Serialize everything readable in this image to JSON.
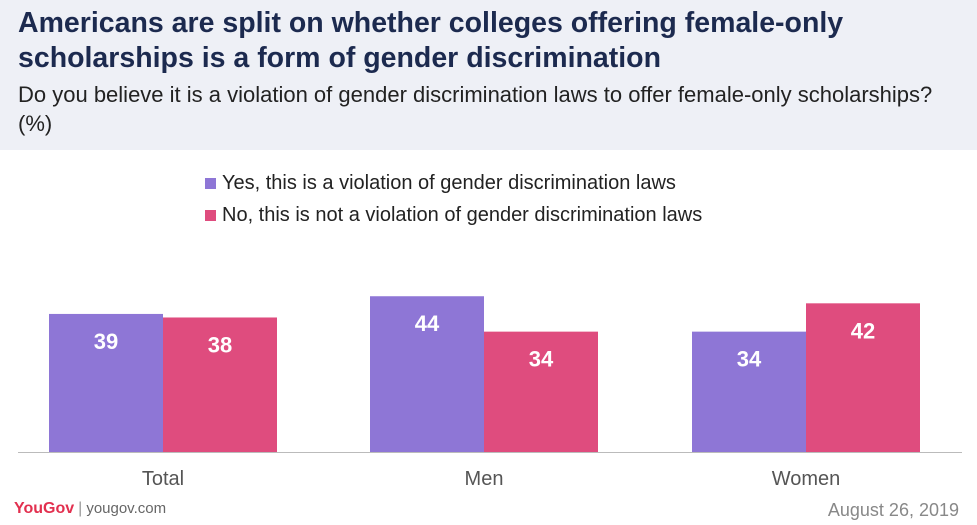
{
  "header": {
    "title": "Americans are split on whether colleges offering female-only scholarships is a form of gender discrimination",
    "subtitle": "Do you believe it is a violation of gender discrimination laws to offer female-only scholarships? (%)"
  },
  "chart_data": {
    "type": "bar",
    "categories": [
      "Total",
      "Men",
      "Women"
    ],
    "series": [
      {
        "name": "Yes, this is a violation of gender discrimination laws",
        "values": [
          39,
          44,
          34
        ],
        "color": "#8e76d6"
      },
      {
        "name": "No, this is not a violation of gender discrimination laws",
        "values": [
          38,
          34,
          42
        ],
        "color": "#df4c7e"
      }
    ],
    "ylim": [
      0,
      50
    ],
    "grid": false,
    "legend": "top-left"
  },
  "footer": {
    "brand": "YouGov",
    "separator": "|",
    "site": "yougov.com",
    "date": "August 26, 2019"
  }
}
